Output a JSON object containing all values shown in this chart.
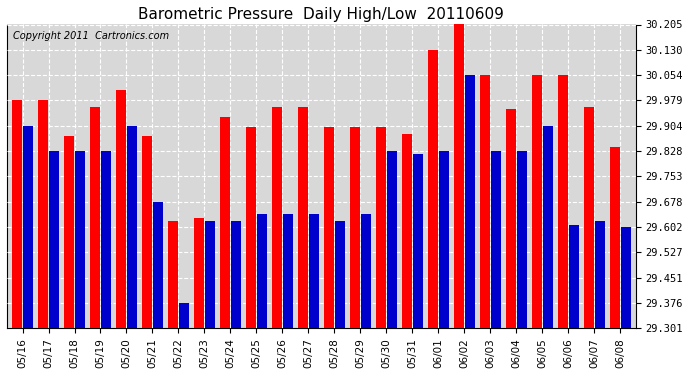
{
  "title": "Barometric Pressure  Daily High/Low  20110609",
  "copyright": "Copyright 2011  Cartronics.com",
  "dates": [
    "05/16",
    "05/17",
    "05/18",
    "05/19",
    "05/20",
    "05/21",
    "05/22",
    "05/23",
    "05/24",
    "05/25",
    "05/26",
    "05/27",
    "05/28",
    "05/29",
    "05/30",
    "05/31",
    "06/01",
    "06/02",
    "06/03",
    "06/04",
    "06/05",
    "06/06",
    "06/07",
    "06/08"
  ],
  "highs": [
    29.979,
    29.979,
    29.872,
    29.96,
    30.01,
    29.872,
    29.62,
    29.63,
    29.93,
    29.9,
    29.96,
    29.96,
    29.9,
    29.9,
    29.9,
    29.88,
    30.13,
    30.21,
    30.054,
    29.954,
    30.054,
    30.054,
    29.96,
    29.84
  ],
  "lows": [
    29.904,
    29.828,
    29.828,
    29.828,
    29.904,
    29.678,
    29.376,
    29.62,
    29.62,
    29.64,
    29.64,
    29.64,
    29.62,
    29.64,
    29.828,
    29.82,
    29.828,
    30.054,
    29.828,
    29.828,
    29.904,
    29.61,
    29.62,
    29.602
  ],
  "y_ticks": [
    29.301,
    29.376,
    29.451,
    29.527,
    29.602,
    29.678,
    29.753,
    29.828,
    29.904,
    29.979,
    30.054,
    30.13,
    30.205
  ],
  "ymin": 29.301,
  "ymax": 30.205,
  "high_color": "#ff0000",
  "low_color": "#0000cc",
  "bg_color": "#ffffff",
  "plot_bg_color": "#d8d8d8",
  "grid_color": "#ffffff",
  "title_fontsize": 11,
  "copyright_fontsize": 7
}
